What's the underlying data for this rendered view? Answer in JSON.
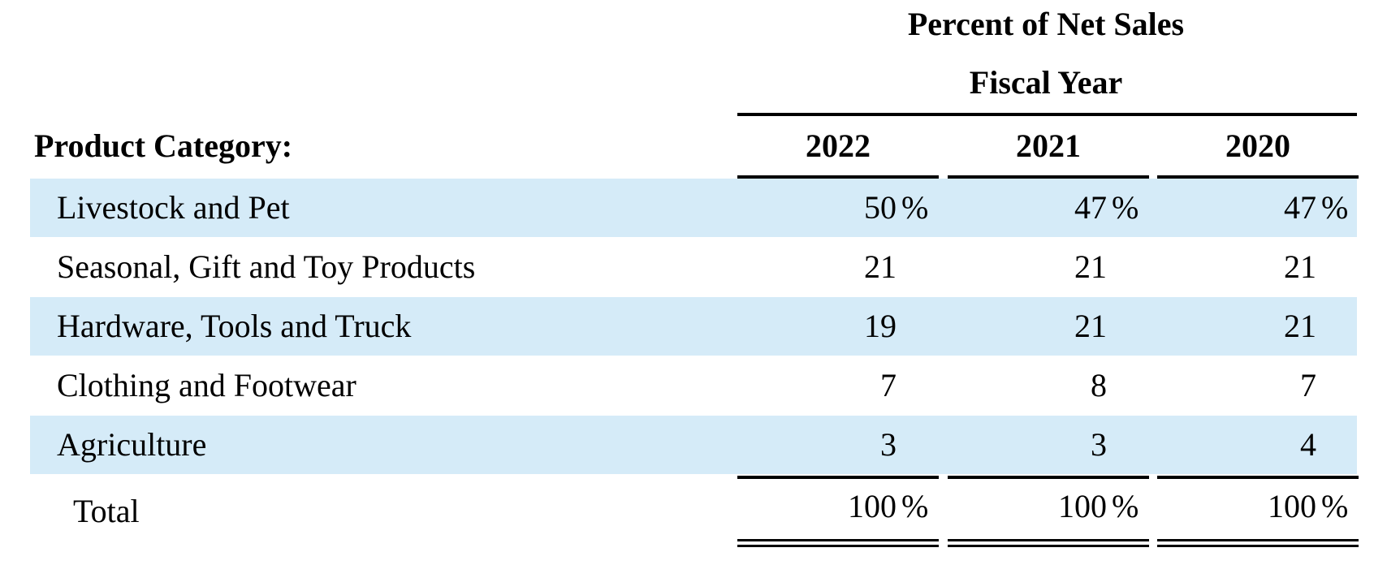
{
  "header": {
    "title": "Percent of Net Sales",
    "subtitle": "Fiscal Year",
    "category_label": "Product Category:",
    "years": [
      "2022",
      "2021",
      "2020"
    ]
  },
  "colors": {
    "band": "#d5ebf8",
    "rule": "#000000"
  },
  "rows": [
    {
      "label": "Livestock and Pet",
      "values": [
        "50",
        "47",
        "47"
      ],
      "pct": [
        "%",
        "%",
        "%"
      ]
    },
    {
      "label": "Seasonal, Gift and Toy Products",
      "values": [
        "21",
        "21",
        "21"
      ]
    },
    {
      "label": "Hardware, Tools and Truck",
      "values": [
        "19",
        "21",
        "21"
      ]
    },
    {
      "label": "Clothing and Footwear",
      "values": [
        "7",
        "8",
        "7"
      ]
    },
    {
      "label": "Agriculture",
      "values": [
        "3",
        "3",
        "4"
      ]
    }
  ],
  "total": {
    "label": "Total",
    "values": [
      "100",
      "100",
      "100"
    ],
    "pct": [
      "%",
      "%",
      "%"
    ]
  }
}
